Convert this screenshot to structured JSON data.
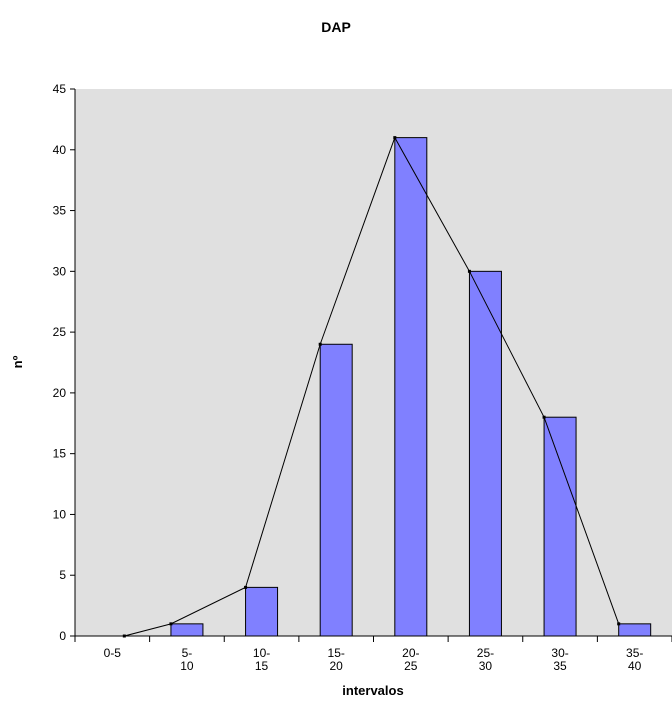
{
  "chart_data": {
    "type": "bar",
    "title": "DAP",
    "xlabel": "intervalos",
    "ylabel": "nº",
    "categories": [
      [
        "0-5"
      ],
      [
        "5-",
        "10"
      ],
      [
        "10-",
        "15"
      ],
      [
        "15-",
        "20"
      ],
      [
        "20-",
        "25"
      ],
      [
        "25-",
        "30"
      ],
      [
        "30-",
        "35"
      ],
      [
        "35-",
        "40"
      ]
    ],
    "values": [
      0,
      1,
      4,
      24,
      41,
      30,
      18,
      1
    ],
    "line_values": [
      0,
      1,
      4,
      24,
      41,
      30,
      18,
      1
    ],
    "ylim": [
      0,
      45
    ],
    "yticks": [
      0,
      5,
      10,
      15,
      20,
      25,
      30,
      35,
      40,
      45
    ],
    "grid": false,
    "colors": {
      "plot_background": "#e0e0e0",
      "bar_fill": "#8080ff",
      "bar_stroke": "#000000",
      "line": "#000000"
    }
  }
}
